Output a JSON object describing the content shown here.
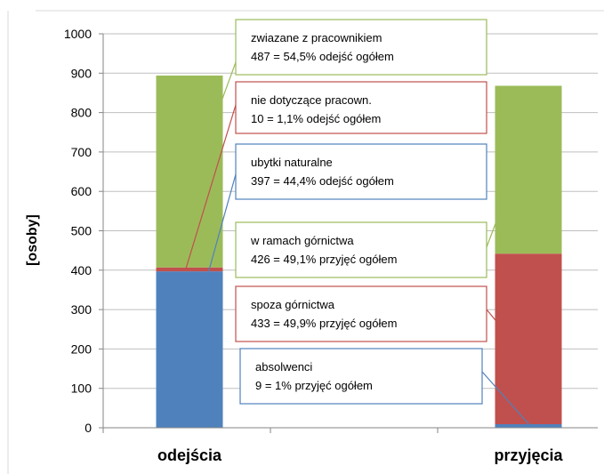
{
  "chart_data": {
    "type": "bar",
    "stacked": true,
    "categories": [
      "odejścia",
      "przyjęcia"
    ],
    "ylabel": "[osoby]",
    "ylim": [
      0,
      1000
    ],
    "yticks": [
      0,
      100,
      200,
      300,
      400,
      500,
      600,
      700,
      800,
      900,
      1000
    ],
    "grid": true,
    "colors": {
      "blue": "#4f81bd",
      "red": "#c0504d",
      "green": "#9bbb59"
    },
    "series": [
      {
        "color": "#4f81bd",
        "values": [
          397,
          9
        ]
      },
      {
        "color": "#c0504d",
        "values": [
          10,
          433
        ]
      },
      {
        "color": "#9bbb59",
        "values": [
          487,
          426
        ]
      }
    ],
    "annotations": [
      {
        "line1": "zwiazane z pracownikiem",
        "line2": "487 = 54,5% odejść ogółem",
        "border": "#9bbb59",
        "category": 0,
        "series": 2
      },
      {
        "line1": "nie dotyczące pracown.",
        "line2": "10 = 1,1% odejść ogółem",
        "border": "#c0504d",
        "category": 0,
        "series": 1
      },
      {
        "line1": "ubytki naturalne",
        "line2": "397 = 44,4% odejść ogółem",
        "border": "#4f81bd",
        "category": 0,
        "series": 0
      },
      {
        "line1": "w ramach górnictwa",
        "line2": "426 = 49,1% przyjęć ogółem",
        "border": "#9bbb59",
        "category": 1,
        "series": 2
      },
      {
        "line1": "spoza górnictwa",
        "line2": "433 = 49,9% przyjęć ogółem",
        "border": "#c0504d",
        "category": 1,
        "series": 1
      },
      {
        "line1": "absolwenci",
        "line2": "9 = 1% przyjęć ogółem",
        "border": "#4f81bd",
        "category": 1,
        "series": 0
      }
    ]
  }
}
